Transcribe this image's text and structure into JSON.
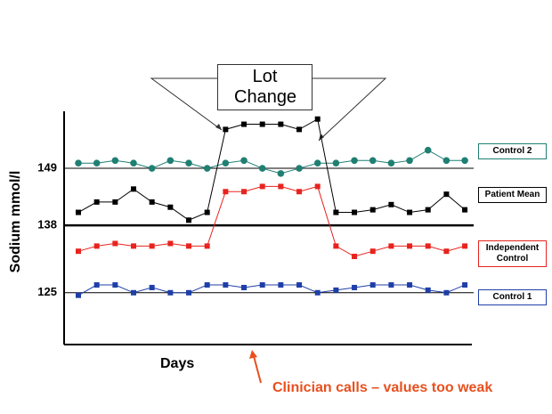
{
  "chart_data": {
    "type": "line",
    "y_label": "Sodium mmol/l",
    "x_label": "Days",
    "annotations": [
      "Lot Change",
      "Clinician calls – values too weak"
    ],
    "ylim": [
      115,
      160
    ],
    "yticks": [
      125,
      138,
      149
    ],
    "grid": true,
    "series": [
      {
        "name": "Control 2",
        "color": "#1f7f72",
        "marker": "circle",
        "values": [
          150,
          150,
          150.5,
          150,
          149,
          150.5,
          150,
          149,
          150,
          150.5,
          149,
          148,
          149,
          150,
          150,
          150.5,
          150.5,
          150,
          150.5,
          152.5,
          150.5,
          150.5
        ]
      },
      {
        "name": "Patient Mean",
        "color": "#000000",
        "marker": "square",
        "values": [
          140.5,
          142.5,
          142.5,
          145,
          142.5,
          141.5,
          139,
          140.5,
          156.5,
          157.5,
          157.5,
          157.5,
          156.5,
          158.5,
          140.5,
          140.5,
          141,
          142,
          140.5,
          141,
          144,
          141
        ]
      },
      {
        "name": "Independent Control",
        "color": "#e8231e",
        "marker": "square",
        "values": [
          133,
          134,
          134.5,
          134,
          134,
          134.5,
          134,
          134,
          144.5,
          144.5,
          145.5,
          145.5,
          144.5,
          145.5,
          134,
          132,
          133,
          134,
          134,
          134,
          133,
          134
        ]
      },
      {
        "name": "Control 1",
        "color": "#1f3fa8",
        "marker": "square",
        "values": [
          124.5,
          126.5,
          126.5,
          125,
          126,
          125,
          125,
          126.5,
          126.5,
          126,
          126.5,
          126.5,
          126.5,
          125,
          125.5,
          126,
          126.5,
          126.5,
          126.5,
          125.5,
          125,
          126.5
        ]
      }
    ]
  }
}
